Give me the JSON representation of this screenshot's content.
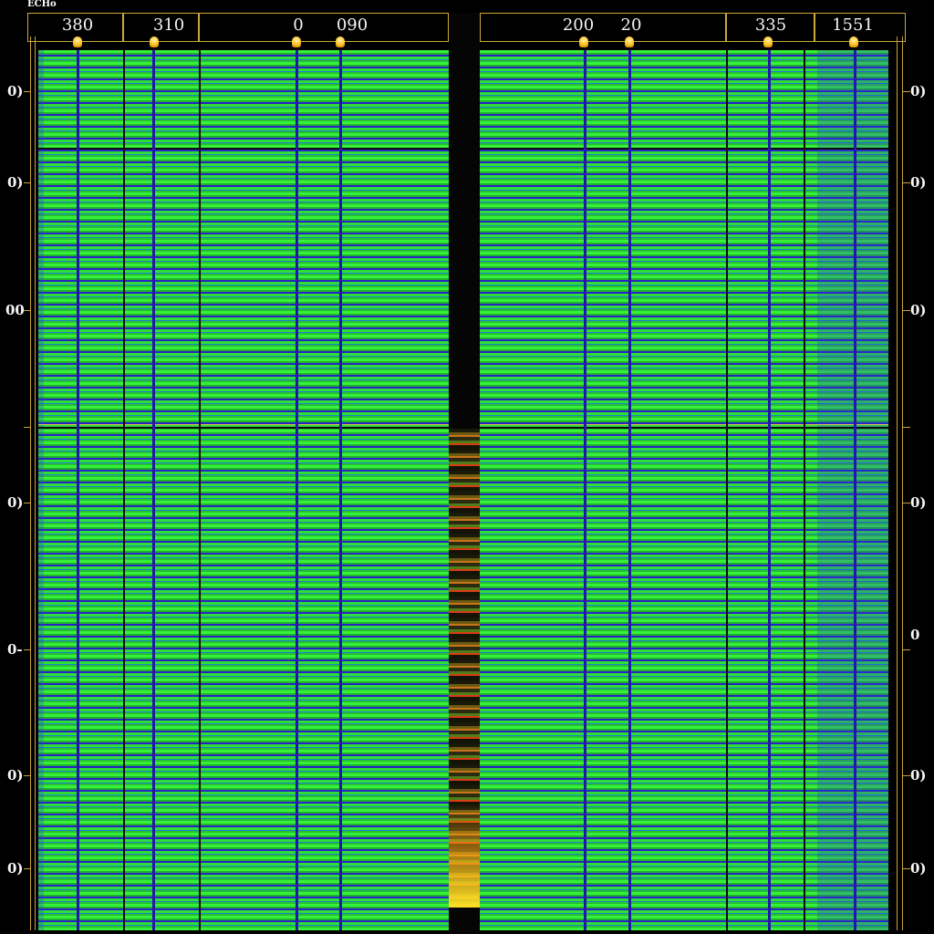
{
  "corner_label": "ECHo",
  "header_labels": [
    "380",
    "310",
    "0",
    "090",
    "200",
    "20",
    "335",
    "1551"
  ],
  "left_row_labels": [
    "0)",
    "0)",
    "00",
    "0)",
    "0-",
    "0)",
    "0)"
  ],
  "right_row_labels": [
    "0)",
    "0)",
    "0)",
    "0)",
    "0",
    "0)",
    "0)"
  ],
  "colors": {
    "background": "#000000",
    "trace_green": "#36f03a",
    "trace_blue": "#2a22c8",
    "frame_gold": "#caa43a",
    "marker_orange": "#ffc21f",
    "hot_band": "#d83c12"
  },
  "icons": {
    "column_marker": "marker-pin-icon"
  }
}
